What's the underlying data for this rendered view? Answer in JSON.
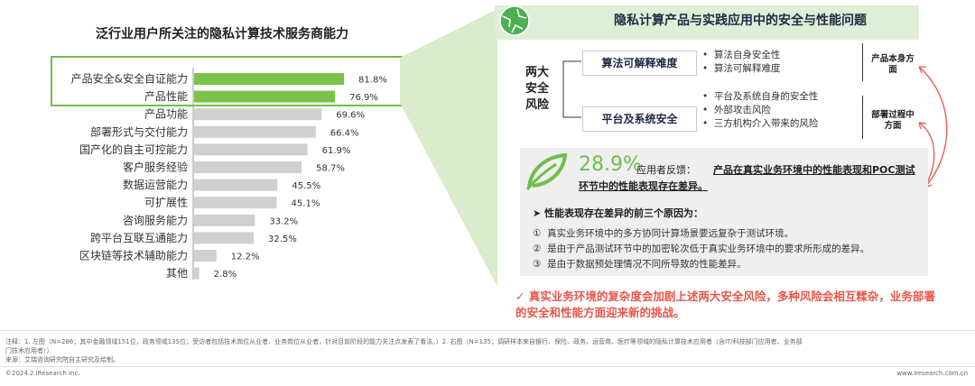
{
  "chart_data": {
    "type": "bar",
    "title": "泛行业用户所关注的隐私计算技术服务商能力",
    "categories": [
      "产品安全&安全自证能力",
      "产品性能",
      "产品功能",
      "部署形式与交付能力",
      "国产化的自主可控能力",
      "客户服务经验",
      "数据运营能力",
      "可扩展性",
      "咨询服务能力",
      "跨平台互联互通能力",
      "区块链等技术辅助能力",
      "其他"
    ],
    "values": [
      81.8,
      76.9,
      69.6,
      66.4,
      61.9,
      58.7,
      45.5,
      45.1,
      33.2,
      32.5,
      12.2,
      2.8
    ],
    "value_labels": [
      "81.8%",
      "76.9%",
      "69.6%",
      "66.4%",
      "61.9%",
      "58.7%",
      "45.5%",
      "45.1%",
      "33.2%",
      "32.5%",
      "12.2%",
      "2.8%"
    ],
    "highlight_indices": [
      0,
      1
    ],
    "colors": {
      "highlight": "#7cc24a",
      "default": "#d0d0d0"
    },
    "xlim": [
      0,
      100
    ]
  },
  "right": {
    "title": "隐私计算产品与实践应用中的安全与性能问题",
    "risk_label_lines": [
      "两大",
      "安全",
      "风险"
    ],
    "box1": "算法可解释难度",
    "box1_bullets": [
      "算法自身安全性",
      "算法可解释难度"
    ],
    "box2": "平台及系统安全",
    "box2_bullets": [
      "平台及系统自身的安全性",
      "外部攻击风险",
      "三方机构介入带来的风险"
    ],
    "side1": [
      "产品本身方",
      "面"
    ],
    "side2": [
      "部署过程中",
      "方面"
    ],
    "pct": "28.9%",
    "feedback_prefix": "应用者反馈：",
    "feedback_line1": "产品在真实业务环境中的性能表现和POC测试",
    "feedback_line2": "环节中的性能表现存在差异。",
    "reasons_head": "➤  性能表现存在差异的前三个原因为：",
    "reasons": [
      {
        "num": "①",
        "text": "真实业务环境中的多方协同计算场景要远复杂于测试环境。"
      },
      {
        "num": "②",
        "text": "是由于产品测试环节中的加密轮次低于真实业务环境中的要求所形成的差异。"
      },
      {
        "num": "③",
        "text": "是由于数据预处理情况不同所导致的性能差异。"
      }
    ],
    "note_mark": "✓",
    "note": "真实业务环境的复杂度会加剧上述两大安全风险，多种风险会相互糅杂，业务部署的安全和性能方面迎来新的挑战。"
  },
  "footer": {
    "note1": "注释：1. 左图（N=286；其中金融领域151位，政务领域135位；受访者包括技术岗位从业者、业务岗位从业者，针对目前阶段的能力关注点发表了看法。）2. 右图（N=135；调研样本来自银行、保险、政务、运营商、医疗等领域的隐私计算技术应用者（含IT/科技部门应用者、业务部",
    "note2": "门技术应用者））",
    "source": "来源：艾瑞咨询研究院自主研究及绘制。",
    "copyright": "©2024.2 iResearch Inc.",
    "website": "www.iresearch.com.cn"
  }
}
